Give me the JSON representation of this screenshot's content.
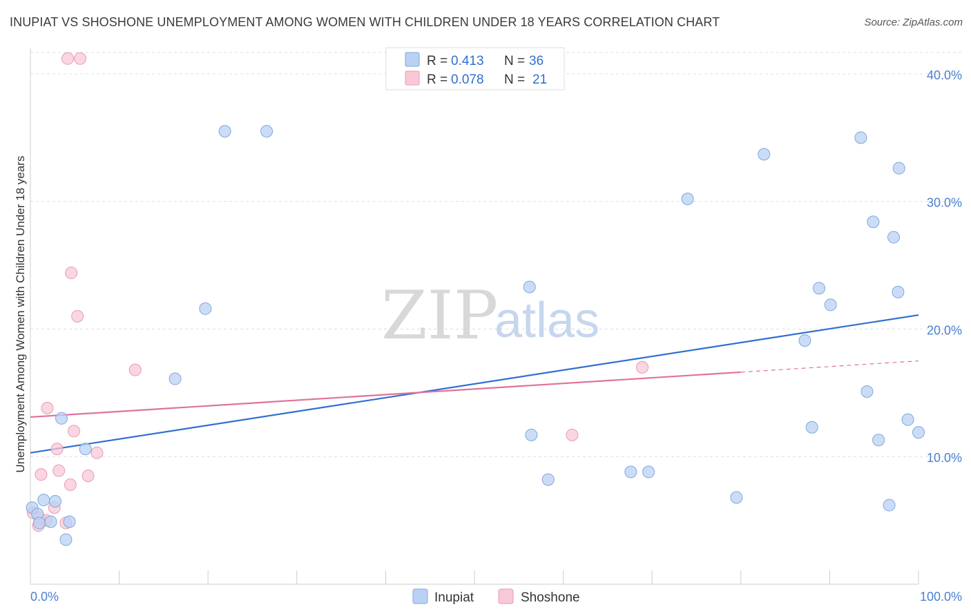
{
  "title": "INUPIAT VS SHOSHONE UNEMPLOYMENT AMONG WOMEN WITH CHILDREN UNDER 18 YEARS CORRELATION CHART",
  "source": "Source: ZipAtlas.com",
  "watermark": {
    "zip": "ZIP",
    "atlas": "atlas"
  },
  "colors": {
    "inupiat_fill": "#b9d2f3",
    "inupiat_stroke": "#7ea6e0",
    "inupiat_line": "#2f6fd0",
    "shoshone_fill": "#f8c8d6",
    "shoshone_stroke": "#e89ab3",
    "shoshone_line": "#e0719a",
    "grid": "#dddddd",
    "tick_text": "#4a7fd0"
  },
  "legend_top": [
    {
      "r_label": "R =",
      "r_value": "0.413",
      "n_label": "N =",
      "n_value": "36"
    },
    {
      "r_label": "R =",
      "r_value": "0.078",
      "n_label": "N =",
      "n_value": "21"
    }
  ],
  "chart_data": {
    "type": "scatter",
    "ylabel": "Unemployment Among Women with Children Under 18 years",
    "xlabel": "",
    "xlim": [
      0,
      100
    ],
    "ylim": [
      0,
      42
    ],
    "x_tick_labels": [
      "0.0%",
      "100.0%"
    ],
    "y_ticks": [
      10,
      20,
      30,
      40
    ],
    "y_tick_labels": [
      "10.0%",
      "20.0%",
      "30.0%",
      "40.0%"
    ],
    "grid": true,
    "legend_position": "bottom",
    "series": [
      {
        "name": "Inupiat",
        "points": [
          [
            0.2,
            6.0
          ],
          [
            0.8,
            5.5
          ],
          [
            1.0,
            4.8
          ],
          [
            1.5,
            6.6
          ],
          [
            2.3,
            4.9
          ],
          [
            2.8,
            6.5
          ],
          [
            3.5,
            13.0
          ],
          [
            4.0,
            3.5
          ],
          [
            4.4,
            4.9
          ],
          [
            6.2,
            10.6
          ],
          [
            16.3,
            16.1
          ],
          [
            19.7,
            21.6
          ],
          [
            21.9,
            35.5
          ],
          [
            26.6,
            35.5
          ],
          [
            56.2,
            23.3
          ],
          [
            56.4,
            11.7
          ],
          [
            58.3,
            8.2
          ],
          [
            67.6,
            8.8
          ],
          [
            69.6,
            8.8
          ],
          [
            74.0,
            30.2
          ],
          [
            79.5,
            6.8
          ],
          [
            82.6,
            33.7
          ],
          [
            87.2,
            19.1
          ],
          [
            88.0,
            12.3
          ],
          [
            88.8,
            23.2
          ],
          [
            90.1,
            21.9
          ],
          [
            93.5,
            35.0
          ],
          [
            94.2,
            15.1
          ],
          [
            94.9,
            28.4
          ],
          [
            95.5,
            11.3
          ],
          [
            96.7,
            6.2
          ],
          [
            97.2,
            27.2
          ],
          [
            97.7,
            22.9
          ],
          [
            97.8,
            32.6
          ],
          [
            98.8,
            12.9
          ],
          [
            100.0,
            11.9
          ]
        ]
      },
      {
        "name": "Shoshone",
        "points": [
          [
            0.3,
            5.6
          ],
          [
            0.9,
            4.6
          ],
          [
            1.2,
            8.6
          ],
          [
            1.8,
            5.0
          ],
          [
            1.9,
            13.8
          ],
          [
            2.7,
            6.0
          ],
          [
            3.0,
            10.6
          ],
          [
            3.2,
            8.9
          ],
          [
            4.0,
            4.8
          ],
          [
            4.2,
            41.2
          ],
          [
            4.5,
            7.8
          ],
          [
            4.6,
            24.4
          ],
          [
            4.9,
            12.0
          ],
          [
            5.3,
            21.0
          ],
          [
            5.6,
            41.2
          ],
          [
            6.5,
            8.5
          ],
          [
            7.5,
            10.3
          ],
          [
            11.8,
            16.8
          ],
          [
            61.0,
            11.7
          ],
          [
            68.9,
            17.0
          ],
          [
            1.0,
            5.2
          ]
        ]
      }
    ],
    "trend_lines": [
      {
        "series": "Inupiat",
        "x": [
          0,
          100
        ],
        "y": [
          10.3,
          21.1
        ],
        "dashed_from": null
      },
      {
        "series": "Shoshone",
        "x": [
          0,
          100
        ],
        "y": [
          13.1,
          17.5
        ],
        "dashed_from": 80
      }
    ]
  },
  "legend_bottom": [
    {
      "label": "Inupiat"
    },
    {
      "label": "Shoshone"
    }
  ]
}
